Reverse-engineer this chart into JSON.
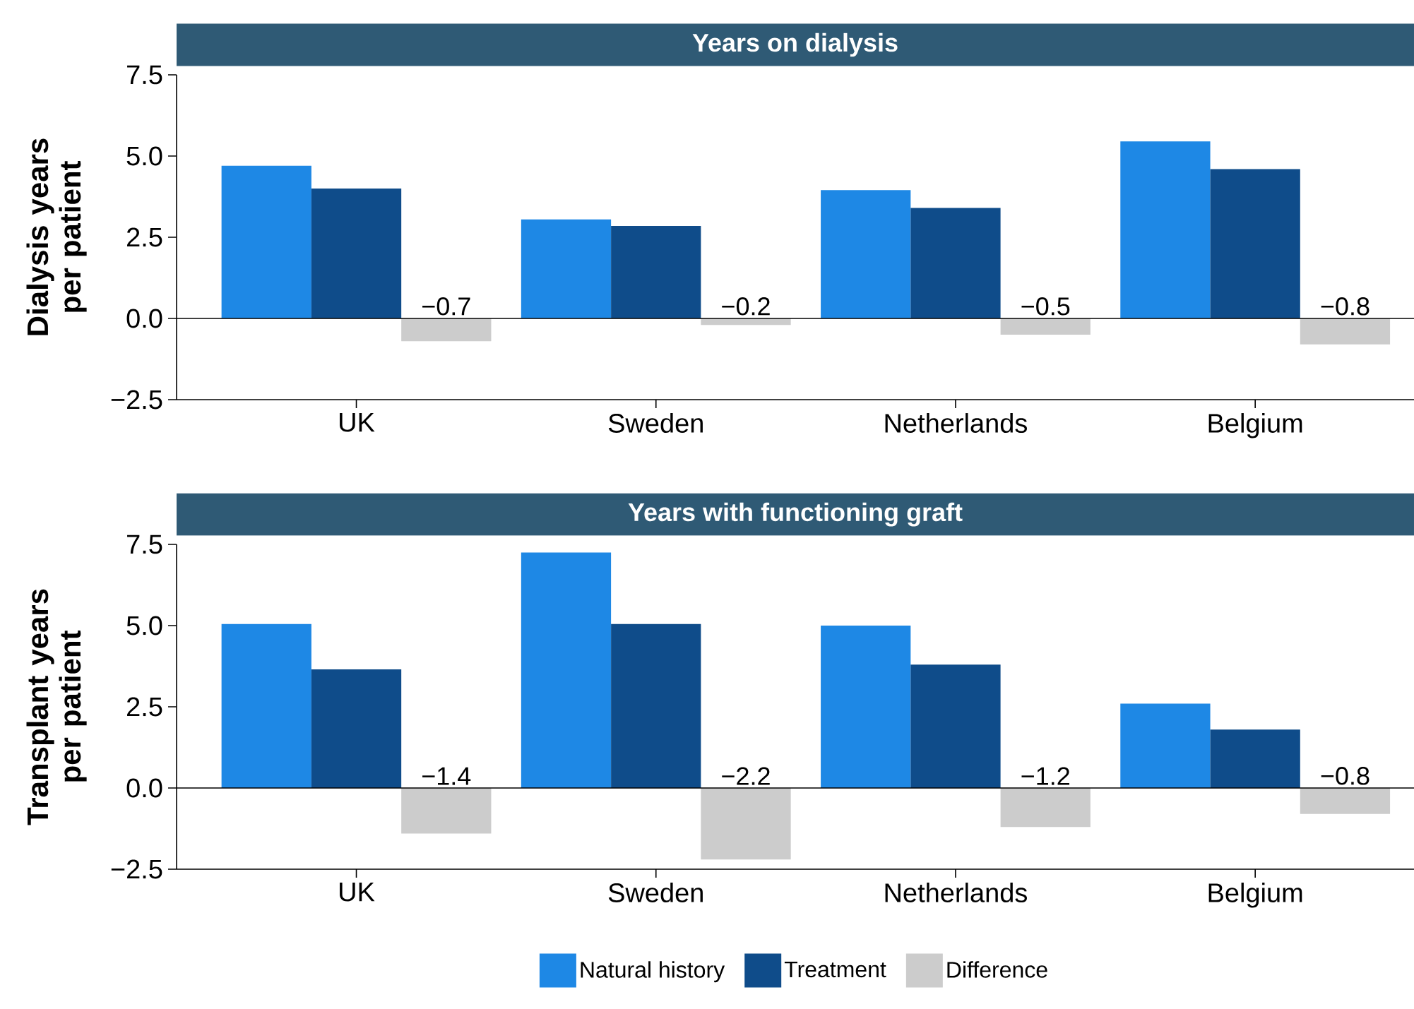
{
  "chart_data": [
    {
      "type": "bar",
      "title": "Years on dialysis",
      "ylabel": "Dialysis years per patient",
      "categories": [
        "UK",
        "Sweden",
        "Netherlands",
        "Belgium"
      ],
      "series": [
        {
          "color": "#1e88e5",
          "values": [
            4.7,
            3.05,
            3.95,
            5.45
          ]
        },
        {
          "color": "#0f4c8a",
          "values": [
            4.0,
            2.85,
            3.4,
            4.6
          ]
        },
        {
          "color": "#cccccc",
          "values": [
            -0.7,
            -0.2,
            -0.5,
            -0.8
          ],
          "value_labels": [
            "−0.7",
            "−0.2",
            "−0.5",
            "−0.8"
          ]
        }
      ],
      "ylim": [
        -2.5,
        7.5
      ],
      "yticks": [
        {
          "value": -2.5,
          "label": "−2.5"
        },
        {
          "value": 0,
          "label": "0.0"
        },
        {
          "value": 2.5,
          "label": "2.5"
        },
        {
          "value": 5,
          "label": "5.0"
        },
        {
          "value": 7.5,
          "label": "7.5"
        }
      ],
      "ref_lines": [
        {
          "axis": "y",
          "value": 0,
          "color": "#000000"
        }
      ]
    },
    {
      "type": "bar",
      "title": "Years with functioning graft",
      "ylabel": "Transplant years per patient",
      "categories": [
        "UK",
        "Sweden",
        "Netherlands",
        "Belgium"
      ],
      "series": [
        {
          "name": "Natural history",
          "color": "#1e88e5",
          "values": [
            5.05,
            7.25,
            5.0,
            2.6
          ]
        },
        {
          "name": "Treatment",
          "color": "#0f4c8a",
          "values": [
            3.65,
            5.05,
            3.8,
            1.8
          ]
        },
        {
          "name": "Difference",
          "color": "#cccccc",
          "values": [
            -1.4,
            -2.2,
            -1.2,
            -0.8
          ],
          "value_labels": [
            "−1.4",
            "−2.2",
            "−1.2",
            "−0.8"
          ]
        }
      ],
      "ylim": [
        -2.5,
        7.5
      ],
      "yticks": [
        {
          "value": -2.5,
          "label": "−2.5"
        },
        {
          "value": 0,
          "label": "0.0"
        },
        {
          "value": 2.5,
          "label": "2.5"
        },
        {
          "value": 5,
          "label": "5.0"
        },
        {
          "value": 7.5,
          "label": "7.5"
        }
      ],
      "ref_lines": [
        {
          "axis": "y",
          "value": 0,
          "color": "#000000"
        }
      ],
      "legend": "bottom"
    }
  ]
}
